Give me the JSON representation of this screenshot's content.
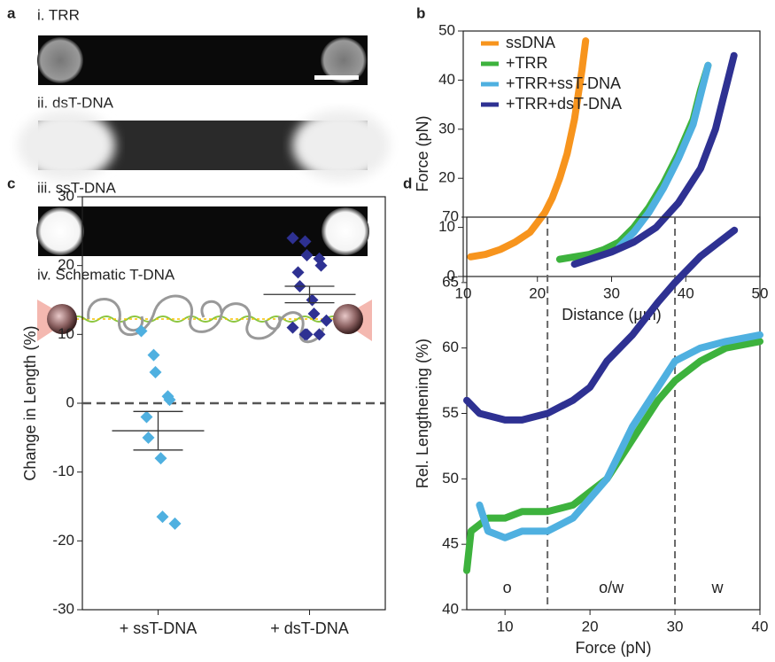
{
  "images": {
    "panel": "a",
    "labels": [
      "i. TRR",
      "ii. dsT-DNA",
      "iii. ssT-DNA",
      "iv. Schematic T-DNA"
    ]
  },
  "chart_data": [
    {
      "type": "line",
      "panel": "b",
      "x_label": "Distance (µm)",
      "y_label": "Force (pN)",
      "xlim": [
        10,
        50
      ],
      "xticks": [
        10,
        20,
        30,
        40,
        50
      ],
      "ylim": [
        0,
        50
      ],
      "yticks": [
        0,
        10,
        20,
        30,
        40,
        50
      ],
      "legend": "upper left",
      "series": [
        {
          "name": "ssDNA",
          "color": "#f7941d",
          "x": [
            11,
            13,
            15,
            17,
            19,
            20,
            21,
            22,
            23,
            24,
            25,
            26,
            26.5
          ],
          "values": [
            4,
            4.5,
            5.5,
            7,
            9,
            11,
            13,
            16,
            20,
            25,
            32,
            42,
            48
          ]
        },
        {
          "name": "+TRR",
          "color": "#3db23d",
          "x": [
            23,
            25,
            27,
            29,
            31,
            33,
            35,
            37,
            39,
            41,
            42,
            43
          ],
          "values": [
            3.5,
            4,
            4.5,
            5.5,
            7,
            10,
            14,
            19,
            25,
            32,
            38,
            43
          ]
        },
        {
          "name": "+TRR+ssT-DNA",
          "color": "#4fb0e0",
          "x": [
            31,
            33,
            35,
            37,
            39,
            41,
            42,
            43
          ],
          "values": [
            6,
            9,
            13,
            18,
            24,
            31,
            37,
            43
          ]
        },
        {
          "name": "+TRR+dsT-DNA",
          "color": "#2e3192",
          "x": [
            25,
            27,
            30,
            33,
            36,
            39,
            42,
            44,
            45,
            46.5
          ],
          "values": [
            2.5,
            3.5,
            5,
            7,
            10,
            15,
            22,
            30,
            36,
            45
          ]
        }
      ]
    },
    {
      "type": "strip",
      "panel": "c",
      "y_label": "Change in Length (%)",
      "categories": [
        "+ ssT-DNA",
        "+ dsT-DNA"
      ],
      "colors": [
        "#4fb0e0",
        "#2e3192"
      ],
      "ylim": [
        -30,
        30
      ],
      "yticks": [
        -30,
        -20,
        -10,
        0,
        10,
        20,
        30
      ],
      "hline": 0,
      "points": [
        [
          10.5,
          7,
          4.5,
          1,
          0.5,
          -2,
          -5,
          -8,
          -16.5,
          -17.5
        ],
        [
          24,
          23.5,
          21.5,
          21,
          20,
          19,
          17,
          15,
          13,
          12,
          11,
          10,
          10,
          10
        ]
      ],
      "means": [
        -4,
        15.8
      ],
      "errors": [
        2.8,
        1.2
      ]
    },
    {
      "type": "line",
      "panel": "d",
      "x_label": "Force (pN)",
      "y_label": "Rel. Lengthening (%)",
      "xlim": [
        5.5,
        40
      ],
      "xticks": [
        10,
        20,
        30,
        40
      ],
      "ylim": [
        40,
        70
      ],
      "yticks": [
        40,
        45,
        50,
        55,
        60,
        65,
        70
      ],
      "vlines": [
        15,
        30
      ],
      "region_labels": [
        "o",
        "o/w",
        "w"
      ],
      "series": [
        {
          "color": "#3db23d",
          "x": [
            5.5,
            6,
            8,
            10,
            12,
            15,
            18,
            20,
            22,
            25,
            28,
            30,
            33,
            36,
            40
          ],
          "values": [
            43,
            46,
            47,
            47,
            47.5,
            47.5,
            48,
            49,
            50,
            53,
            56,
            57.5,
            59,
            60,
            60.5
          ]
        },
        {
          "color": "#4fb0e0",
          "x": [
            7,
            8,
            10,
            12,
            15,
            18,
            20,
            22,
            25,
            28,
            30,
            33,
            36,
            40
          ],
          "values": [
            48,
            46,
            45.5,
            46,
            46,
            47,
            48.5,
            50,
            54,
            57,
            59,
            60,
            60.5,
            61
          ]
        },
        {
          "color": "#2e3192",
          "x": [
            5.5,
            7,
            10,
            12,
            15,
            18,
            20,
            22,
            25,
            28,
            30,
            33,
            35,
            37
          ],
          "values": [
            56,
            55,
            54.5,
            54.5,
            55,
            56,
            57,
            59,
            61,
            63.5,
            65,
            67,
            68,
            69
          ]
        }
      ]
    }
  ]
}
